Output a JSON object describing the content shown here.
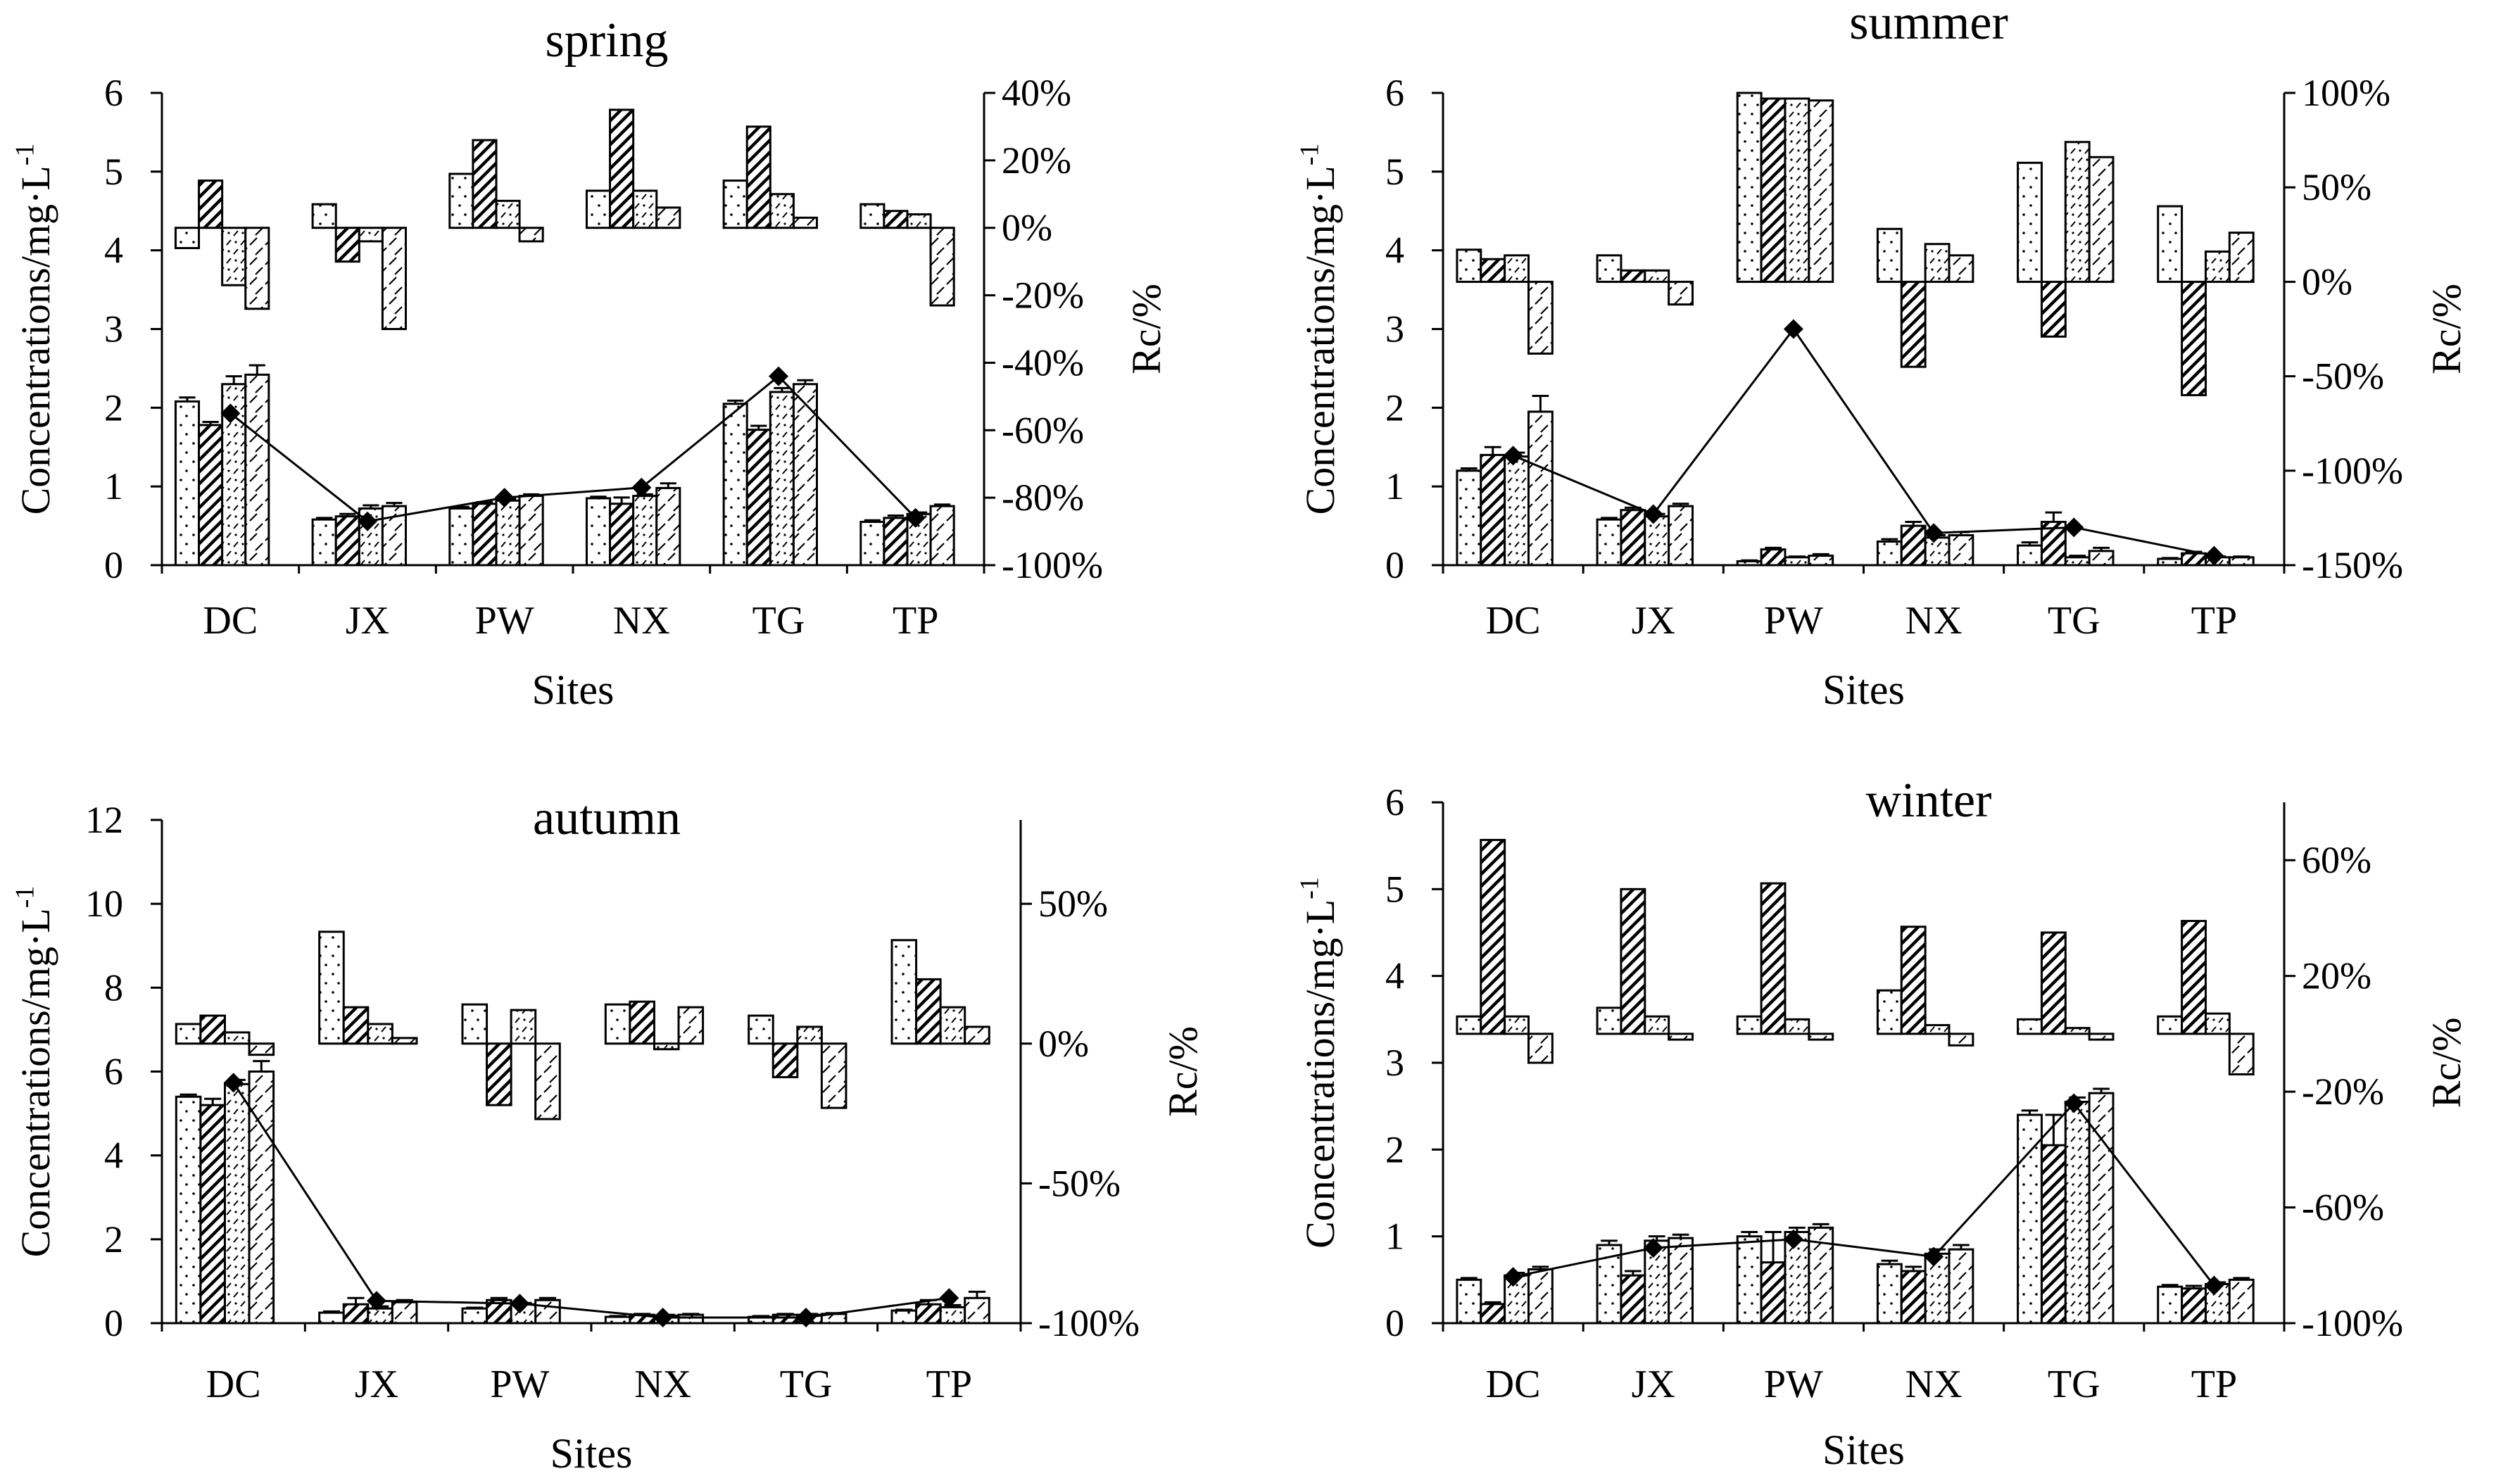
{
  "figure": "seasonal concentrations and Rc by site",
  "chart_data": [
    {
      "type": "bar",
      "title": "spring",
      "xlabel": "Sites",
      "ylabel": "Concentrations/mg·L",
      "ylabel_sup": "-1",
      "y2label": "Rc/%",
      "categories": [
        "DC",
        "JX",
        "PW",
        "NX",
        "TG",
        "TP"
      ],
      "ylim": [
        0,
        6
      ],
      "yticks": [
        0,
        1,
        2,
        3,
        4,
        5,
        6
      ],
      "y2lim": [
        -100,
        40
      ],
      "y2ticks": [
        -100,
        -80,
        -60,
        -40,
        -20,
        0,
        20,
        40
      ],
      "y2tick_labels": [
        "-100%",
        "-80%",
        "-60%",
        "-40%",
        "-20%",
        "0%",
        "20%",
        "40%"
      ],
      "concentration_series": [
        {
          "values": [
            2.08,
            0.58,
            0.72,
            0.85,
            2.05,
            0.55
          ],
          "errors": [
            0.05,
            0.02,
            0.02,
            0.02,
            0.04,
            0.02
          ]
        },
        {
          "values": [
            1.78,
            0.62,
            0.78,
            0.78,
            1.72,
            0.6
          ],
          "errors": [
            0.04,
            0.03,
            0.02,
            0.08,
            0.05,
            0.03
          ]
        },
        {
          "values": [
            2.3,
            0.72,
            0.82,
            0.88,
            2.2,
            0.65
          ],
          "errors": [
            0.1,
            0.04,
            0.02,
            0.02,
            0.05,
            0.02
          ]
        },
        {
          "values": [
            2.42,
            0.75,
            0.88,
            0.98,
            2.3,
            0.75
          ],
          "errors": [
            0.12,
            0.04,
            0.02,
            0.06,
            0.05,
            0.02
          ]
        }
      ],
      "rc_line": [
        -55,
        -87,
        -80,
        -77,
        -44,
        -86
      ],
      "rc_series": [
        {
          "values": [
            -6,
            7,
            16,
            11,
            14,
            7
          ]
        },
        {
          "values": [
            14,
            -10,
            26,
            35,
            30,
            5
          ]
        },
        {
          "values": [
            -17,
            -4,
            8,
            11,
            10,
            4
          ]
        },
        {
          "values": [
            -24,
            -30,
            -4,
            6,
            3,
            -23
          ]
        }
      ]
    },
    {
      "type": "bar",
      "title": "summer",
      "xlabel": "Sites",
      "ylabel": "Concentrations/mg·L",
      "ylabel_sup": "-1",
      "y2label": "Rc/%",
      "categories": [
        "DC",
        "JX",
        "PW",
        "NX",
        "TG",
        "TP"
      ],
      "ylim": [
        0,
        6
      ],
      "yticks": [
        0,
        1,
        2,
        3,
        4,
        5,
        6
      ],
      "y2lim": [
        -150,
        100
      ],
      "y2ticks": [
        -150,
        -100,
        -50,
        0,
        50,
        100
      ],
      "y2tick_labels": [
        "-150%",
        "-100%",
        "-50%",
        "0%",
        "50%",
        "100%"
      ],
      "concentration_series": [
        {
          "values": [
            1.2,
            0.58,
            0.05,
            0.3,
            0.25,
            0.08
          ],
          "errors": [
            0.03,
            0.02,
            0.01,
            0.03,
            0.04,
            0.01
          ]
        },
        {
          "values": [
            1.4,
            0.7,
            0.2,
            0.5,
            0.55,
            0.15
          ],
          "errors": [
            0.1,
            0.03,
            0.02,
            0.05,
            0.12,
            0.02
          ]
        },
        {
          "values": [
            1.38,
            0.62,
            0.1,
            0.35,
            0.1,
            0.1
          ],
          "errors": [
            0.05,
            0.03,
            0.01,
            0.03,
            0.02,
            0.01
          ]
        },
        {
          "values": [
            1.95,
            0.75,
            0.12,
            0.38,
            0.18,
            0.1
          ],
          "errors": [
            0.2,
            0.03,
            0.02,
            0.04,
            0.04,
            0.01
          ]
        }
      ],
      "rc_line": [
        -92,
        -123,
        -25,
        -133,
        -130,
        -145
      ],
      "rc_series": [
        {
          "values": [
            17,
            14,
            100,
            28,
            63,
            40
          ]
        },
        {
          "values": [
            12,
            6,
            97,
            -45,
            -29,
            -60
          ]
        },
        {
          "values": [
            14,
            6,
            97,
            20,
            74,
            16
          ]
        },
        {
          "values": [
            -38,
            -12,
            96,
            14,
            66,
            26
          ]
        }
      ]
    },
    {
      "type": "bar",
      "title": "autumn",
      "xlabel": "Sites",
      "ylabel": "Concentrations/mg·L",
      "ylabel_sup": "-1",
      "y2label": "Rc/%",
      "categories": [
        "DC",
        "JX",
        "PW",
        "NX",
        "TG",
        "TP"
      ],
      "ylim": [
        0,
        12
      ],
      "yticks": [
        0,
        2,
        4,
        6,
        8,
        10,
        12
      ],
      "y2lim": [
        -100,
        80
      ],
      "y2ticks": [
        -100,
        -50,
        0,
        50
      ],
      "y2tick_labels": [
        "-100%",
        "-50%",
        "0%",
        "50%"
      ],
      "concentration_series": [
        {
          "values": [
            5.4,
            0.25,
            0.35,
            0.15,
            0.15,
            0.3
          ],
          "errors": [
            0.05,
            0.03,
            0.02,
            0.02,
            0.02,
            0.02
          ]
        },
        {
          "values": [
            5.2,
            0.45,
            0.55,
            0.2,
            0.2,
            0.45
          ],
          "errors": [
            0.15,
            0.15,
            0.05,
            0.02,
            0.02,
            0.1
          ]
        },
        {
          "values": [
            5.7,
            0.35,
            0.45,
            0.18,
            0.2,
            0.38
          ],
          "errors": [
            0.1,
            0.05,
            0.03,
            0.02,
            0.02,
            0.05
          ]
        },
        {
          "values": [
            6.0,
            0.5,
            0.55,
            0.2,
            0.22,
            0.6
          ],
          "errors": [
            0.25,
            0.05,
            0.05,
            0.02,
            0.02,
            0.15
          ]
        }
      ],
      "rc_line": [
        -14,
        -92,
        -93,
        -98,
        -98,
        -91
      ],
      "rc_series": [
        {
          "values": [
            7,
            40,
            14,
            14,
            10,
            37
          ]
        },
        {
          "values": [
            10,
            13,
            -22,
            15,
            -12,
            23
          ]
        },
        {
          "values": [
            4,
            7,
            12,
            -2,
            6,
            13
          ]
        },
        {
          "values": [
            -4,
            2,
            -27,
            13,
            -23,
            6
          ]
        }
      ]
    },
    {
      "type": "bar",
      "title": "winter",
      "xlabel": "Sites",
      "ylabel": "Concentrations/mg·L",
      "ylabel_sup": "-1",
      "y2label": "Rc/%",
      "categories": [
        "DC",
        "JX",
        "PW",
        "NX",
        "TG",
        "TP"
      ],
      "ylim": [
        0,
        6
      ],
      "yticks": [
        0,
        1,
        2,
        3,
        4,
        5,
        6
      ],
      "y2lim": [
        -100,
        80
      ],
      "y2ticks": [
        -100,
        -60,
        -20,
        20,
        60
      ],
      "y2tick_labels": [
        "-100%",
        "-60%",
        "-20%",
        "20%",
        "60%"
      ],
      "concentration_series": [
        {
          "values": [
            0.5,
            0.9,
            1.0,
            0.68,
            2.4,
            0.42
          ],
          "errors": [
            0.02,
            0.05,
            0.05,
            0.04,
            0.05,
            0.02
          ]
        },
        {
          "values": [
            0.22,
            0.55,
            0.7,
            0.6,
            2.05,
            0.4
          ],
          "errors": [
            0.02,
            0.05,
            0.35,
            0.05,
            0.35,
            0.03
          ]
        },
        {
          "values": [
            0.55,
            0.95,
            1.05,
            0.8,
            2.55,
            0.45
          ],
          "errors": [
            0.03,
            0.05,
            0.05,
            0.05,
            0.05,
            0.02
          ]
        },
        {
          "values": [
            0.62,
            0.98,
            1.1,
            0.85,
            2.65,
            0.5
          ],
          "errors": [
            0.03,
            0.04,
            0.04,
            0.05,
            0.05,
            0.02
          ]
        }
      ],
      "rc_line": [
        -84,
        -74,
        -71,
        -77,
        -24,
        -87
      ],
      "rc_series": [
        {
          "values": [
            6,
            9,
            6,
            15,
            5,
            6
          ]
        },
        {
          "values": [
            67,
            50,
            52,
            37,
            35,
            39
          ]
        },
        {
          "values": [
            6,
            6,
            5,
            3,
            2,
            7
          ]
        },
        {
          "values": [
            -10,
            -2,
            -2,
            -4,
            -2,
            -14
          ]
        }
      ]
    }
  ]
}
